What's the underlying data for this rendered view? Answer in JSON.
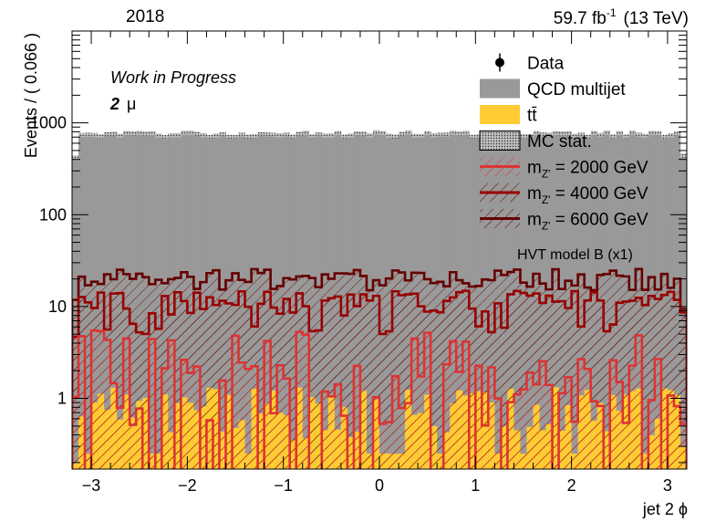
{
  "header": {
    "year": "2018",
    "lumi": "59.7 fb",
    "lumi_exp": "-1",
    "energy": "(13 TeV)"
  },
  "labels": {
    "work_in_progress": "Work in Progress",
    "channel_num": "2",
    "channel_particle": "μ",
    "model_note": "HVT model B (x1)"
  },
  "colors": {
    "qcd": "#999999",
    "ttbar": "#ffcc33",
    "mc_stat": "#4d4d4d",
    "signal_2000": "#dd3333",
    "signal_4000": "#990000",
    "signal_6000": "#660000",
    "data": "#000000"
  },
  "chart_data": {
    "type": "histogram-stack",
    "xlabel": "jet 2  ϕ",
    "ylabel": "Events / ( 0.066 )",
    "xlim": [
      -3.2,
      3.2
    ],
    "ylim": [
      0.17,
      10000
    ],
    "y_scale": "log",
    "x_ticks": [
      -3,
      -2,
      -1,
      0,
      1,
      2,
      3
    ],
    "y_ticks": [
      {
        "value": 1,
        "label": "1"
      },
      {
        "value": 10,
        "label": "10"
      },
      {
        "value": 100,
        "label": "100"
      },
      {
        "value": 1000,
        "label": "1000"
      }
    ],
    "n_bins": 96,
    "legend_position": "top-right",
    "legend": [
      {
        "label": "Data",
        "style": "marker"
      },
      {
        "label": "QCD multijet",
        "style": "fill-qcd"
      },
      {
        "label": "tt̄",
        "style": "fill-ttbar"
      },
      {
        "label": "MC stat.",
        "style": "stat"
      },
      {
        "label": "m",
        "sub": "Z'",
        "rest": " = 2000 GeV",
        "style": "sig2000"
      },
      {
        "label": "m",
        "sub": "Z'",
        "rest": " = 4000 GeV",
        "style": "sig4000"
      },
      {
        "label": "m",
        "sub": "Z'",
        "rest": " = 6000 GeV",
        "style": "sig6000"
      }
    ],
    "series": [
      {
        "name": "QCD multijet",
        "approx_level": 730,
        "range": [
          680,
          800
        ]
      },
      {
        "name": "tt̄",
        "approx_level": 0.7,
        "range": [
          0.25,
          1.4
        ]
      },
      {
        "name": "m_Z' = 2000 GeV",
        "approx_level": 1.2,
        "range": [
          0.1,
          4.5
        ]
      },
      {
        "name": "m_Z' = 4000 GeV",
        "approx_level": 12,
        "range": [
          5,
          16
        ]
      },
      {
        "name": "m_Z' = 6000 GeV",
        "approx_level": 20,
        "range": [
          15,
          28
        ]
      }
    ]
  }
}
